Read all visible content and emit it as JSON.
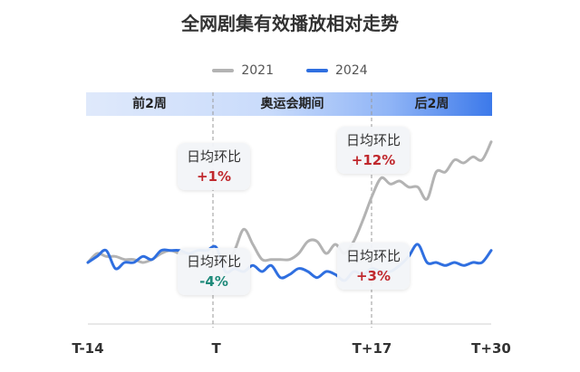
{
  "colors": {
    "series_2021": "#b3b3b3",
    "series_2024": "#2f6fe0",
    "increase": "#c0282d",
    "decrease": "#1f8a7a",
    "phase_bar_start": "#dfe9fb",
    "phase_bar_end": "#3c79ea"
  },
  "chart_data": {
    "type": "line",
    "title": "全网剧集有效播放相对走势",
    "legend": [
      "2021",
      "2024"
    ],
    "legend_position": "top-center",
    "xlabel": "",
    "ylabel": "",
    "x_range": [
      -14,
      30
    ],
    "x_ticks": [
      "T-14",
      "T",
      "T+17",
      "T+30"
    ],
    "x_tick_values": [
      -14,
      0,
      17,
      30
    ],
    "y_axis_shown": false,
    "grid": false,
    "phases": [
      {
        "label": "前2周",
        "start": -14,
        "end": 0
      },
      {
        "label": "奥运会期间",
        "start": 0,
        "end": 17
      },
      {
        "label": "后2周",
        "start": 17,
        "end": 30
      }
    ],
    "series": [
      {
        "name": "2021",
        "x": [
          -14,
          -13,
          -12,
          -11,
          -10,
          -9,
          -8,
          -7,
          -6,
          -5,
          -4,
          -3,
          -2,
          -1,
          0,
          1,
          2,
          3,
          4,
          5,
          6,
          7,
          8,
          9,
          10,
          11,
          12,
          13,
          14,
          15,
          16,
          17,
          18,
          19,
          20,
          21,
          22,
          23,
          24,
          25,
          26,
          27,
          28,
          29,
          30
        ],
        "values": [
          100,
          103,
          102,
          102,
          101,
          101,
          100,
          101,
          103,
          104,
          103,
          103,
          102,
          101,
          101,
          100,
          104,
          111,
          106,
          101,
          101,
          101,
          101,
          103,
          107,
          107,
          103,
          106,
          103,
          107,
          114,
          122,
          128,
          126,
          127,
          125,
          125,
          121,
          130,
          130,
          134,
          133,
          135,
          134,
          140
        ]
      },
      {
        "name": "2024",
        "x": [
          -14,
          -13,
          -12,
          -11,
          -10,
          -9,
          -8,
          -7,
          -6,
          -5,
          -4,
          -3,
          -2,
          -1,
          0,
          1,
          2,
          3,
          4,
          5,
          6,
          7,
          8,
          9,
          10,
          11,
          12,
          13,
          14,
          15,
          16,
          17,
          18,
          19,
          20,
          21,
          22,
          23,
          24,
          25,
          26,
          27,
          28,
          29,
          30
        ],
        "values": [
          100,
          102,
          104,
          98,
          100,
          100,
          102,
          101,
          104,
          104,
          104,
          103,
          104,
          104,
          105,
          97,
          98,
          97,
          99,
          97,
          99,
          95,
          96,
          98,
          97,
          95,
          97,
          96,
          94,
          97,
          96,
          98,
          97,
          97,
          99,
          102,
          106,
          100,
          100,
          99,
          100,
          99,
          100,
          100,
          104
        ]
      }
    ],
    "annotations": [
      {
        "label": "日均环比",
        "series": "2021",
        "phase": "奥运会期间",
        "value": "+1%"
      },
      {
        "label": "日均环比",
        "series": "2024",
        "phase": "奥运会期间",
        "value": "-4%"
      },
      {
        "label": "日均环比",
        "series": "2021",
        "phase": "后2周",
        "value": "+12%"
      },
      {
        "label": "日均环比",
        "series": "2024",
        "phase": "后2周",
        "value": "+3%"
      }
    ]
  }
}
